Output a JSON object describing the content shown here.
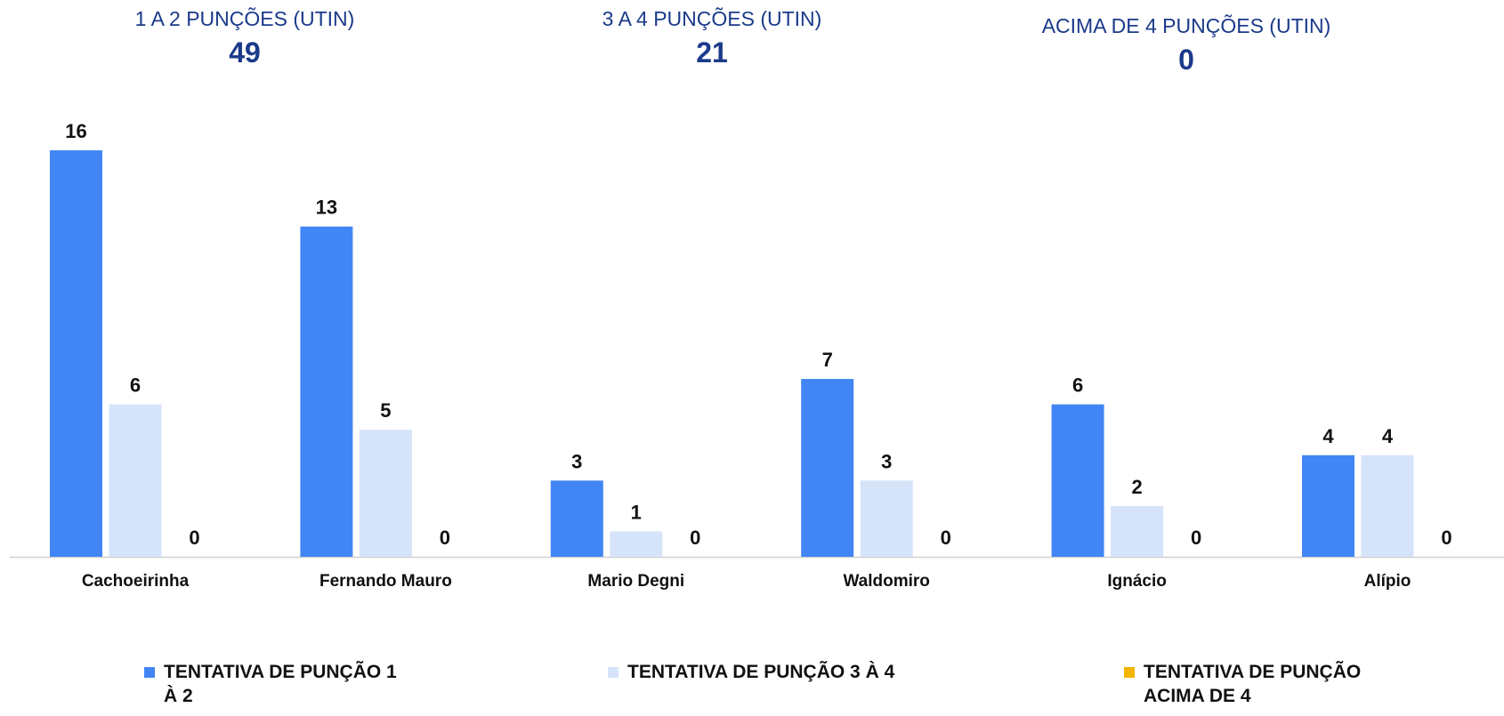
{
  "kpis": [
    {
      "label": "1 A 2 PUNÇÕES (UTIN)",
      "value": 49
    },
    {
      "label": "3 A 4 PUNÇÕES (UTIN)",
      "value": 21
    },
    {
      "label": "ACIMA DE 4 PUNÇÕES (UTIN)",
      "value": 0
    }
  ],
  "chart_data": {
    "type": "bar",
    "categories": [
      "Cachoeirinha",
      "Fernando Mauro",
      "Mario Degni",
      "Waldomiro",
      "Ignácio",
      "Alípio"
    ],
    "series": [
      {
        "name": "TENTATIVA DE PUNÇÃO 1 À 2",
        "color": "#4285f4",
        "values": [
          16,
          13,
          3,
          7,
          6,
          4
        ]
      },
      {
        "name": "TENTATIVA DE PUNÇÃO 3 À 4",
        "color": "#d6e4fa",
        "values": [
          6,
          5,
          1,
          3,
          2,
          4
        ]
      },
      {
        "name": "TENTATIVA DE PUNÇÃO ACIMA DE 4",
        "color": "#f4b400",
        "values": [
          0,
          0,
          0,
          0,
          0,
          0
        ]
      }
    ]
  }
}
